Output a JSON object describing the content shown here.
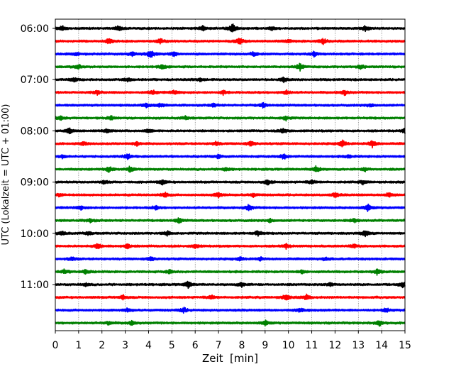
{
  "chart_data": {
    "type": "line",
    "title": "",
    "xlabel": "Zeit  [min]",
    "ylabel": "UTC (Lokalzeit = UTC + 01:00)",
    "xlim": [
      0,
      15
    ],
    "x_ticks": [
      "0",
      "1",
      "2",
      "3",
      "4",
      "5",
      "6",
      "7",
      "8",
      "9",
      "10",
      "11",
      "12",
      "13",
      "14",
      "15"
    ],
    "y_tick_labels": [
      "06:00",
      "07:00",
      "08:00",
      "09:00",
      "10:00",
      "11:00"
    ],
    "grid": "vertical dotted at each minute",
    "legend": "none",
    "colors": [
      "#000000",
      "#ff0000",
      "#0000ff",
      "#008000"
    ],
    "traces": [
      {
        "start": "06:00",
        "color": "#000000",
        "events": [
          {
            "x": 0.3,
            "amp": 0.5
          },
          {
            "x": 2.7,
            "amp": 0.5
          },
          {
            "x": 6.3,
            "amp": 0.6
          },
          {
            "x": 7.6,
            "amp": 1.0
          },
          {
            "x": 9.3,
            "amp": 0.4
          },
          {
            "x": 13.3,
            "amp": 0.6
          }
        ]
      },
      {
        "start": "06:15",
        "color": "#ff0000",
        "events": [
          {
            "x": 2.3,
            "amp": 0.6
          },
          {
            "x": 4.5,
            "amp": 0.7
          },
          {
            "x": 7.9,
            "amp": 0.8
          },
          {
            "x": 10.0,
            "amp": 0.5
          },
          {
            "x": 11.5,
            "amp": 0.6
          }
        ]
      },
      {
        "start": "06:30",
        "color": "#0000ff",
        "events": [
          {
            "x": 0.9,
            "amp": 0.4
          },
          {
            "x": 3.3,
            "amp": 0.5
          },
          {
            "x": 4.1,
            "amp": 0.9
          },
          {
            "x": 5.1,
            "amp": 0.5
          },
          {
            "x": 8.5,
            "amp": 0.5
          },
          {
            "x": 11.1,
            "amp": 0.5
          }
        ]
      },
      {
        "start": "06:45",
        "color": "#008000",
        "events": [
          {
            "x": 1.0,
            "amp": 0.5
          },
          {
            "x": 4.6,
            "amp": 0.5
          },
          {
            "x": 10.5,
            "amp": 0.8
          },
          {
            "x": 13.1,
            "amp": 0.5
          }
        ]
      },
      {
        "start": "07:00",
        "color": "#000000",
        "events": [
          {
            "x": 0.8,
            "amp": 0.4
          },
          {
            "x": 3.1,
            "amp": 0.4
          },
          {
            "x": 6.2,
            "amp": 0.4
          },
          {
            "x": 9.8,
            "amp": 0.5
          }
        ]
      },
      {
        "start": "07:15",
        "color": "#ff0000",
        "events": [
          {
            "x": 1.8,
            "amp": 0.4
          },
          {
            "x": 4.2,
            "amp": 0.5
          },
          {
            "x": 5.1,
            "amp": 0.4
          },
          {
            "x": 7.2,
            "amp": 0.5
          },
          {
            "x": 9.9,
            "amp": 0.5
          },
          {
            "x": 12.4,
            "amp": 0.6
          }
        ]
      },
      {
        "start": "07:30",
        "color": "#0000ff",
        "events": [
          {
            "x": 3.9,
            "amp": 0.5
          },
          {
            "x": 4.5,
            "amp": 0.4
          },
          {
            "x": 6.8,
            "amp": 0.4
          },
          {
            "x": 8.9,
            "amp": 0.5
          },
          {
            "x": 13.5,
            "amp": 0.4
          }
        ]
      },
      {
        "start": "07:45",
        "color": "#008000",
        "events": [
          {
            "x": 0.2,
            "amp": 0.5
          },
          {
            "x": 2.4,
            "amp": 0.4
          },
          {
            "x": 5.6,
            "amp": 0.4
          },
          {
            "x": 9.9,
            "amp": 0.5
          }
        ]
      },
      {
        "start": "08:00",
        "color": "#000000",
        "events": [
          {
            "x": 0.6,
            "amp": 0.6
          },
          {
            "x": 2.2,
            "amp": 0.4
          },
          {
            "x": 4.0,
            "amp": 0.4
          },
          {
            "x": 9.8,
            "amp": 0.6
          },
          {
            "x": 15.0,
            "amp": 0.5
          }
        ]
      },
      {
        "start": "08:15",
        "color": "#ff0000",
        "events": [
          {
            "x": 1.2,
            "amp": 0.4
          },
          {
            "x": 3.5,
            "amp": 0.4
          },
          {
            "x": 6.9,
            "amp": 0.4
          },
          {
            "x": 8.4,
            "amp": 0.6
          },
          {
            "x": 12.3,
            "amp": 0.8
          },
          {
            "x": 13.6,
            "amp": 0.8
          }
        ]
      },
      {
        "start": "08:30",
        "color": "#0000ff",
        "events": [
          {
            "x": 0.3,
            "amp": 0.3
          },
          {
            "x": 3.1,
            "amp": 0.6
          },
          {
            "x": 7.0,
            "amp": 0.4
          },
          {
            "x": 9.8,
            "amp": 0.6
          },
          {
            "x": 12.6,
            "amp": 0.4
          }
        ]
      },
      {
        "start": "08:45",
        "color": "#008000",
        "events": [
          {
            "x": 2.3,
            "amp": 0.6
          },
          {
            "x": 3.2,
            "amp": 0.6
          },
          {
            "x": 7.3,
            "amp": 0.4
          },
          {
            "x": 11.2,
            "amp": 0.8
          },
          {
            "x": 13.3,
            "amp": 0.4
          }
        ]
      },
      {
        "start": "09:00",
        "color": "#000000",
        "events": [
          {
            "x": 2.1,
            "amp": 0.4
          },
          {
            "x": 4.6,
            "amp": 0.5
          },
          {
            "x": 9.1,
            "amp": 0.6
          },
          {
            "x": 11.0,
            "amp": 0.4
          },
          {
            "x": 13.2,
            "amp": 0.4
          }
        ]
      },
      {
        "start": "09:15",
        "color": "#ff0000",
        "events": [
          {
            "x": 0.2,
            "amp": 0.4
          },
          {
            "x": 4.7,
            "amp": 0.6
          },
          {
            "x": 7.0,
            "amp": 0.6
          },
          {
            "x": 8.5,
            "amp": 0.4
          },
          {
            "x": 12.0,
            "amp": 0.5
          },
          {
            "x": 14.3,
            "amp": 0.5
          }
        ]
      },
      {
        "start": "09:30",
        "color": "#0000ff",
        "events": [
          {
            "x": 1.1,
            "amp": 0.4
          },
          {
            "x": 4.3,
            "amp": 0.4
          },
          {
            "x": 8.3,
            "amp": 0.7
          },
          {
            "x": 13.4,
            "amp": 0.7
          }
        ]
      },
      {
        "start": "09:45",
        "color": "#008000",
        "events": [
          {
            "x": 1.5,
            "amp": 0.4
          },
          {
            "x": 5.3,
            "amp": 0.5
          },
          {
            "x": 9.2,
            "amp": 0.4
          },
          {
            "x": 12.8,
            "amp": 0.4
          }
        ]
      },
      {
        "start": "10:00",
        "color": "#000000",
        "events": [
          {
            "x": 0.3,
            "amp": 0.4
          },
          {
            "x": 1.4,
            "amp": 0.4
          },
          {
            "x": 4.8,
            "amp": 0.5
          },
          {
            "x": 8.7,
            "amp": 0.6
          },
          {
            "x": 13.3,
            "amp": 0.7
          }
        ]
      },
      {
        "start": "10:15",
        "color": "#ff0000",
        "events": [
          {
            "x": 1.8,
            "amp": 0.6
          },
          {
            "x": 3.1,
            "amp": 0.5
          },
          {
            "x": 6.0,
            "amp": 0.5
          },
          {
            "x": 9.9,
            "amp": 0.5
          },
          {
            "x": 12.8,
            "amp": 0.4
          }
        ]
      },
      {
        "start": "10:30",
        "color": "#0000ff",
        "events": [
          {
            "x": 0.7,
            "amp": 0.4
          },
          {
            "x": 4.1,
            "amp": 0.5
          },
          {
            "x": 7.9,
            "amp": 0.4
          },
          {
            "x": 8.8,
            "amp": 0.4
          },
          {
            "x": 11.6,
            "amp": 0.4
          }
        ]
      },
      {
        "start": "10:45",
        "color": "#008000",
        "events": [
          {
            "x": 0.4,
            "amp": 0.5
          },
          {
            "x": 1.3,
            "amp": 0.5
          },
          {
            "x": 4.9,
            "amp": 0.4
          },
          {
            "x": 10.6,
            "amp": 0.4
          },
          {
            "x": 13.8,
            "amp": 0.6
          }
        ]
      },
      {
        "start": "11:00",
        "color": "#000000",
        "events": [
          {
            "x": 1.3,
            "amp": 0.3
          },
          {
            "x": 5.7,
            "amp": 0.7
          },
          {
            "x": 8.0,
            "amp": 0.5
          },
          {
            "x": 11.8,
            "amp": 0.4
          },
          {
            "x": 14.9,
            "amp": 0.6
          }
        ]
      },
      {
        "start": "11:15",
        "color": "#ff0000",
        "events": [
          {
            "x": 2.9,
            "amp": 0.5
          },
          {
            "x": 6.7,
            "amp": 0.4
          },
          {
            "x": 9.9,
            "amp": 0.7
          },
          {
            "x": 10.8,
            "amp": 0.7
          }
        ]
      },
      {
        "start": "11:30",
        "color": "#0000ff",
        "events": [
          {
            "x": 3.1,
            "amp": 0.4
          },
          {
            "x": 5.5,
            "amp": 0.6
          },
          {
            "x": 10.5,
            "amp": 0.5
          },
          {
            "x": 14.2,
            "amp": 0.5
          }
        ]
      },
      {
        "start": "11:45",
        "color": "#008000",
        "events": [
          {
            "x": 2.3,
            "amp": 0.4
          },
          {
            "x": 3.3,
            "amp": 0.5
          },
          {
            "x": 9.0,
            "amp": 0.5
          },
          {
            "x": 13.9,
            "amp": 0.7
          }
        ]
      }
    ]
  }
}
